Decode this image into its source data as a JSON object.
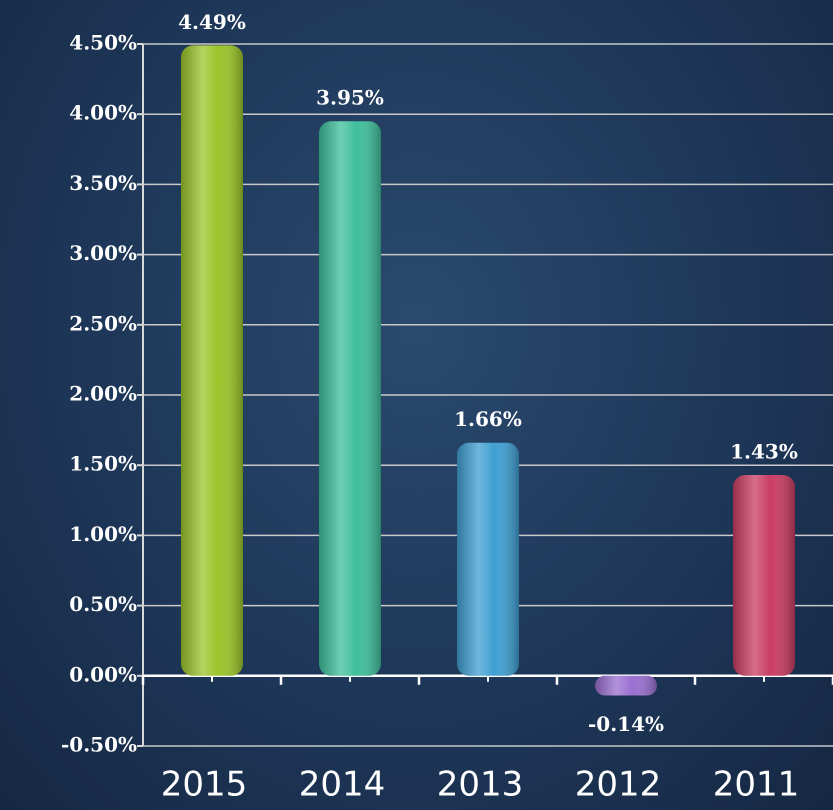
{
  "chart_data": {
    "type": "bar",
    "categories": [
      "2015",
      "2014",
      "2013",
      "2012",
      "2011"
    ],
    "values": [
      4.49,
      3.95,
      1.66,
      -0.14,
      1.43
    ],
    "value_labels": [
      "4.49%",
      "3.95%",
      "1.66%",
      "-0.14%",
      "1.43%"
    ],
    "colors": [
      "#9bc52a",
      "#3fbf9c",
      "#3f9fd2",
      "#9a6fd0",
      "#c93d63"
    ],
    "ylim": [
      -0.5,
      4.5
    ],
    "yticks": [
      {
        "value": -0.5,
        "label": "-0.50%"
      },
      {
        "value": 0,
        "label": "0.00%"
      },
      {
        "value": 0.5,
        "label": "0.50%"
      },
      {
        "value": 1,
        "label": "1.00%"
      },
      {
        "value": 1.5,
        "label": "1.50%"
      },
      {
        "value": 2,
        "label": "2.00%"
      },
      {
        "value": 2.5,
        "label": "2.50%"
      },
      {
        "value": 3,
        "label": "3.00%"
      },
      {
        "value": 3.5,
        "label": "3.50%"
      },
      {
        "value": 4,
        "label": "4.00%"
      },
      {
        "value": 4.5,
        "label": "4.50%"
      }
    ],
    "grid": true
  }
}
